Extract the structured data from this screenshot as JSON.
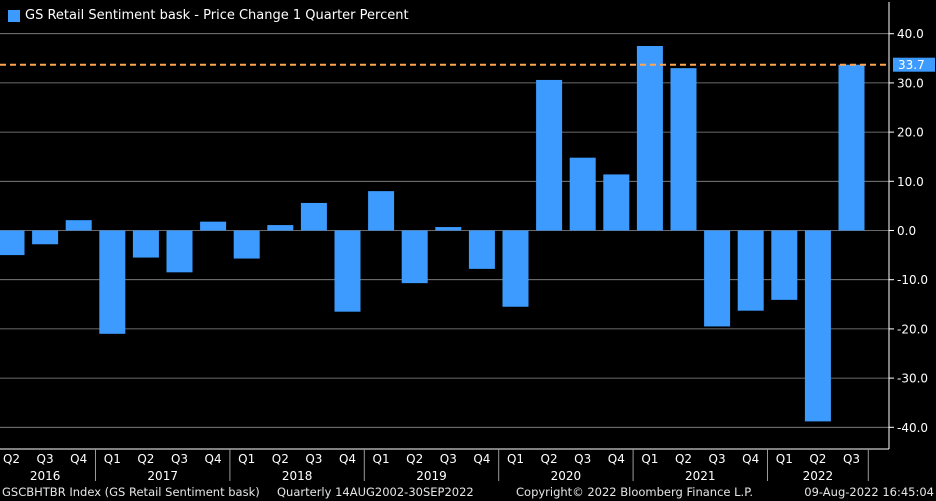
{
  "chart_data": {
    "type": "bar",
    "legend": "GS Retail Sentiment bask - Price Change 1 Quarter Percent",
    "series": [
      {
        "name": "GS Retail Sentiment bask - Price Change 1 Quarter Percent",
        "color": "#3d9bff",
        "values": [
          -5.0,
          -2.8,
          2.1,
          -21.0,
          -5.5,
          -8.5,
          1.8,
          -5.7,
          1.1,
          5.6,
          -16.5,
          8.0,
          -10.7,
          0.7,
          -7.8,
          -15.5,
          30.6,
          14.8,
          11.4,
          37.5,
          33.0,
          -19.5,
          -16.3,
          -14.1,
          -38.8,
          33.7
        ]
      }
    ],
    "categories": [
      "Q2",
      "Q3",
      "Q4",
      "Q1",
      "Q2",
      "Q3",
      "Q4",
      "Q1",
      "Q2",
      "Q3",
      "Q4",
      "Q1",
      "Q2",
      "Q3",
      "Q4",
      "Q1",
      "Q2",
      "Q3",
      "Q4",
      "Q1",
      "Q2",
      "Q3",
      "Q4",
      "Q1",
      "Q2",
      "Q3"
    ],
    "years": [
      {
        "label": "2016",
        "first": 0,
        "last": 2
      },
      {
        "label": "2017",
        "first": 3,
        "last": 6
      },
      {
        "label": "2018",
        "first": 7,
        "last": 10
      },
      {
        "label": "2019",
        "first": 11,
        "last": 14
      },
      {
        "label": "2020",
        "first": 15,
        "last": 18
      },
      {
        "label": "2021",
        "first": 19,
        "last": 22
      },
      {
        "label": "2022",
        "first": 23,
        "last": 25
      }
    ],
    "y_ticks": [
      40.0,
      30.0,
      20.0,
      10.0,
      0.0,
      -10.0,
      -20.0,
      -30.0,
      -40.0
    ],
    "y_tick_labels": [
      "40.0",
      "30.0",
      "20.0",
      "10.0",
      "0.0",
      "-10.0",
      "-20.0",
      "-30.0",
      "-40.0"
    ],
    "ylim": [
      -44.5,
      46.5
    ],
    "grid": true,
    "axis_side": "right",
    "reference_line": {
      "value": 33.7,
      "label": "33.7",
      "color": "#ffa54f"
    },
    "colors": {
      "bar": "#3d9bff",
      "axis": "#ffffff",
      "grid": "#8c8c8c",
      "background": "#000000"
    }
  },
  "footer": {
    "left": "GSCBHTBR Index (GS Retail Sentiment bask)",
    "middle": "Quarterly 14AUG2002-30SEP2022",
    "copyright": "Copyright© 2022 Bloomberg Finance L.P.",
    "timestamp": "09-Aug-2022 16:45:04"
  }
}
